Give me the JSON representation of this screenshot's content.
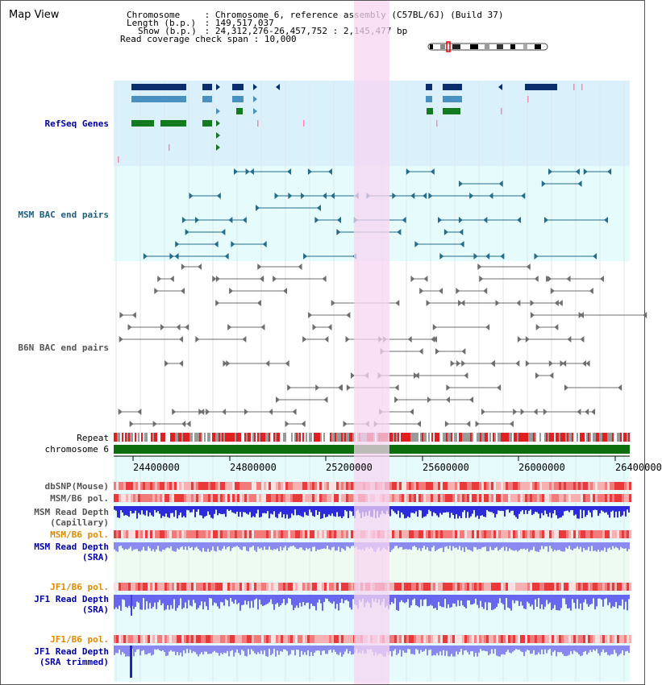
{
  "app": {
    "title": "Map View"
  },
  "header": {
    "chromosome_label": "Chromosome",
    "chromosome_value": "Chromosome 6, reference assembly (C57BL/6J) (Build 37)",
    "length_label": "Length (b.p.)",
    "length_value": "149,517,037",
    "show_label": "Show (b.p.)",
    "show_value": "24,312,276-26,457,752 : 2,145,477 bp",
    "coverage_label": "Read coverage check span",
    "coverage_value": "10,000"
  },
  "tracks": {
    "refseq": "RefSeq Genes",
    "msm_bac": "MSM BAC end pairs",
    "b6n_bac": "B6N BAC end pairs",
    "repeat": "Repeat",
    "chromosome": "chromosome 6",
    "dbsnp": "dbSNP(Mouse)",
    "msm_b6_pol_1": "MSM/B6 pol.",
    "msm_read_depth_cap_1": "MSM Read Depth",
    "msm_read_depth_cap_2": "(Capillary)",
    "msm_b6_pol_2": "MSM/B6 pol.",
    "msm_read_depth_sra_1": "MSM Read Depth",
    "msm_read_depth_sra_2": "(SRA)",
    "jf1_b6_pol_1": "JF1/B6 pol.",
    "jf1_read_depth_sra_1": "JF1 Read Depth",
    "jf1_read_depth_sra_2": "(SRA)",
    "jf1_b6_pol_2": "JF1/B6 pol.",
    "jf1_read_depth_trim_1": "JF1 Read Depth",
    "jf1_read_depth_trim_2": "(SRA trimmed)"
  },
  "axis": {
    "ticks": [
      "24400000",
      "24800000",
      "25200000",
      "25600000",
      "26000000",
      "26400000"
    ]
  },
  "colors": {
    "refseq_bg": "#daf0fa",
    "bac_bg": "#e6fbfb",
    "highlight": "#f7d6f2",
    "gene_dark": "#0c2d6b",
    "gene_mid": "#4a91c2",
    "gene_green": "#147a1f",
    "msm_bac": "#236c8e",
    "b6n_bac": "#6e6e6e",
    "chromosome": "#0d6e0d",
    "depth_blue": "#2b2bdb",
    "depth_light": "#8a8af0",
    "label_blue": "#0000aa",
    "label_teal": "#1e5f80",
    "label_gray": "#555555",
    "label_orange": "#e08a00"
  }
}
